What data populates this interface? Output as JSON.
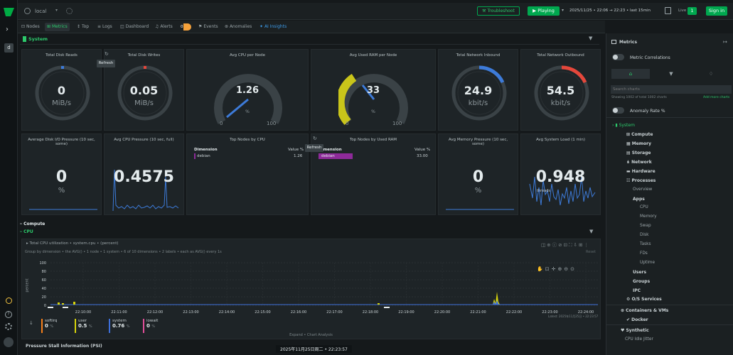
{
  "topbar": {
    "space": "local",
    "troubleshoot": "Troubleshoot",
    "playing": "Playing",
    "timerange": "2025/11/25 • 22:06 → 22:23 • last 15min",
    "live_label": "Live",
    "live_count": "1",
    "signin": "Sign in"
  },
  "tabs": [
    {
      "label": "Nodes"
    },
    {
      "label": "Metrics"
    },
    {
      "label": "Top"
    },
    {
      "label": "Logs"
    },
    {
      "label": "Dashboard"
    },
    {
      "label": "Alerts"
    },
    {
      "label": "Events"
    },
    {
      "label": "Anomalies"
    },
    {
      "label": "AI Insights"
    }
  ],
  "alerts_badge": "0",
  "section_system": "System",
  "refresh_tooltip": "Refresh",
  "gauges_row1": [
    {
      "title": "Total Disk Reads",
      "value": "0",
      "unit": "MiB/s"
    },
    {
      "title": "Total Disk Writes",
      "value": "0.05",
      "unit": "MiB/s"
    },
    {
      "title": "Avg CPU per Node",
      "value": "1.26",
      "unit": "%",
      "min": "0",
      "max": "100"
    },
    {
      "title": "Avg Used RAM per Node",
      "value": "33",
      "unit": "%",
      "min": "0",
      "max": "100"
    },
    {
      "title": "Total Network Inbound",
      "value": "24.9",
      "unit": "kbit/s"
    },
    {
      "title": "Total Network Outbound",
      "value": "54.5",
      "unit": "kbit/s"
    }
  ],
  "gauges_row2": [
    {
      "title": "Average Disk I/O Pressure (10 sec, some)",
      "value": "0",
      "unit": "%"
    },
    {
      "title": "Avg CPU Pressure (10 sec, full)",
      "value": "0.4575"
    },
    {
      "title": "Avg Memory Pressure (10 sec, some)",
      "value": "0",
      "unit": "%"
    },
    {
      "title": "Avg System Load (1 min)",
      "value": "0.948",
      "sublabel": "threads"
    }
  ],
  "top_cpu": {
    "title": "Top Nodes by CPU",
    "dim_header": "Dimension",
    "val_header": "Value %",
    "row_name": "debian",
    "row_value": "1.26"
  },
  "top_ram": {
    "title": "Top Nodes by Used RAM",
    "dim_header": "Dimension",
    "val_header": "Value %",
    "row_name": "debian",
    "row_value": "33.00"
  },
  "compute": {
    "label": "Compute",
    "cpu": "CPU",
    "chart_title": "Total CPU utilization • system.cpu • (percent)",
    "groupby": "Group by dimension • the AVG() • 1 node • 1 system • 6 of 10 dimensions • 2 labels • each as AVG() every 1s",
    "ylabel": "percent",
    "reset": "Reset",
    "yticks": [
      "100",
      "80",
      "60",
      "40",
      "20",
      "0"
    ],
    "xticks": [
      "22:10:00",
      "22:11:00",
      "22:12:00",
      "22:13:00",
      "22:14:00",
      "22:15:00",
      "22:16:00",
      "22:17:00",
      "22:18:00",
      "22:19:00",
      "22:20:00",
      "22:21:00",
      "22:22:00",
      "22:23:00",
      "22:24:00"
    ],
    "latest_note": "Latest: 2025年11月25日 • 22:23:57",
    "legend": [
      {
        "name": "softirq",
        "value": "0",
        "unit": "%",
        "color": "#f77f1a"
      },
      {
        "name": "user",
        "value": "0.5",
        "unit": "%",
        "color": "#d7d40b"
      },
      {
        "name": "system",
        "value": "0.76",
        "unit": "%",
        "color": "#3d6fd9"
      },
      {
        "name": "iowait",
        "value": "0",
        "unit": "%",
        "color": "#e34e9a"
      }
    ],
    "expand": "Expand • Chart Analysis",
    "next_section": "Pressure Stall Information (PSI)",
    "footer_time": "2025年11月25日周二 • 22:23:57"
  },
  "sidebar": {
    "title": "Metrics",
    "correlations": "Metric Correlations",
    "search_placeholder": "Search charts",
    "showing": "Showing 1002 of total 1002 charts",
    "add_more": "Add more charts",
    "anomaly": "Anomaly Rate %",
    "tree": {
      "system": "System",
      "items": [
        "Compute",
        "Memory",
        "Storage",
        "Network",
        "Hardware",
        "Processes"
      ],
      "process_subs": [
        "Overview",
        "Apps"
      ],
      "apps_subs": [
        "CPU",
        "Memory",
        "Swap",
        "Disk",
        "Tasks",
        "FDs",
        "Uptime"
      ],
      "after": [
        "Users",
        "Groups",
        "IPC",
        "O/S Services"
      ],
      "containers": "Containers & VMs",
      "docker": "Docker",
      "synthetic": "Synthetic",
      "cpu_idle": "CPU Idle Jitter"
    }
  },
  "colors": {
    "accent": "#00a84f",
    "red": "#e5473b",
    "blue": "#3d7bd9",
    "yellow": "#c9c51a",
    "purple": "#8e2a9a"
  }
}
